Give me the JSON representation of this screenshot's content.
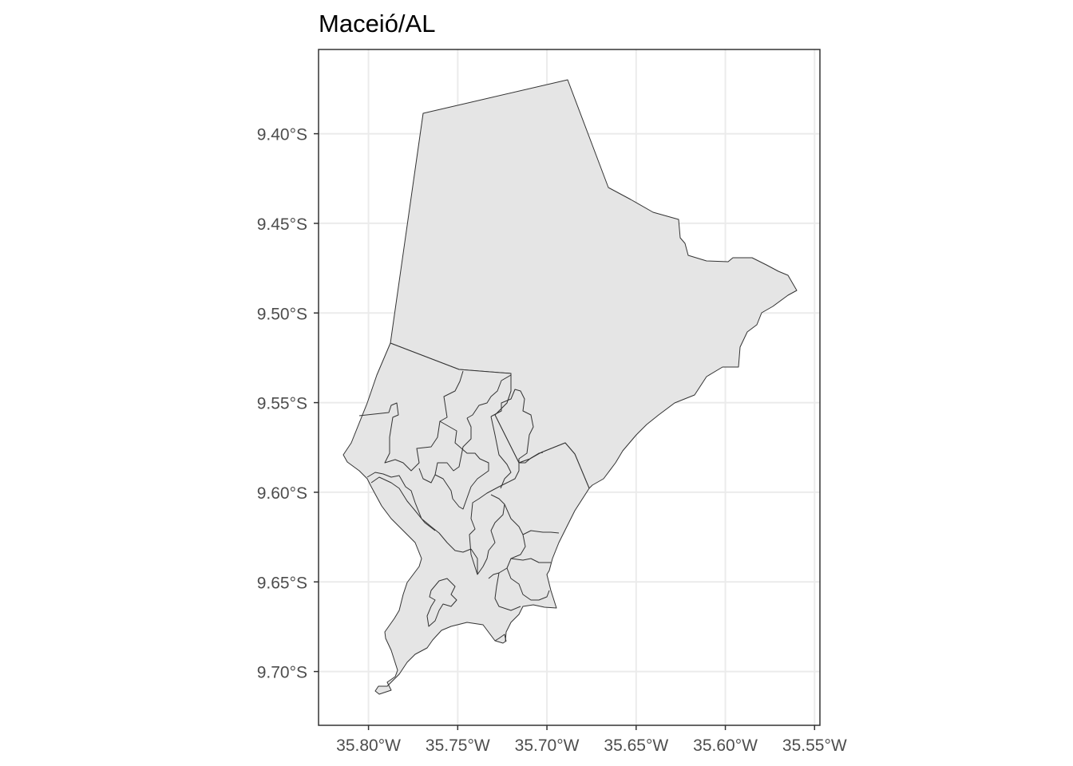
{
  "title": "Maceió/AL",
  "chart_data": {
    "type": "map",
    "title": "Maceió/AL",
    "x_ticks": [
      {
        "value": -35.8,
        "label": "35.80°W"
      },
      {
        "value": -35.75,
        "label": "35.75°W"
      },
      {
        "value": -35.7,
        "label": "35.70°W"
      },
      {
        "value": -35.65,
        "label": "35.65°W"
      },
      {
        "value": -35.6,
        "label": "35.60°W"
      },
      {
        "value": -35.55,
        "label": "35.55°W"
      }
    ],
    "y_ticks": [
      {
        "value": -9.4,
        "label": "9.40°S"
      },
      {
        "value": -9.45,
        "label": "9.45°S"
      },
      {
        "value": -9.5,
        "label": "9.50°S"
      },
      {
        "value": -9.55,
        "label": "9.55°S"
      },
      {
        "value": -9.6,
        "label": "9.60°S"
      },
      {
        "value": -9.65,
        "label": "9.65°S"
      },
      {
        "value": -9.7,
        "label": "9.70°S"
      }
    ],
    "xlim": [
      -35.828,
      -35.547
    ],
    "ylim": [
      -9.73,
      -9.353
    ],
    "grid": true,
    "fill_color": "#e5e5e5",
    "border_color": "#333333"
  }
}
